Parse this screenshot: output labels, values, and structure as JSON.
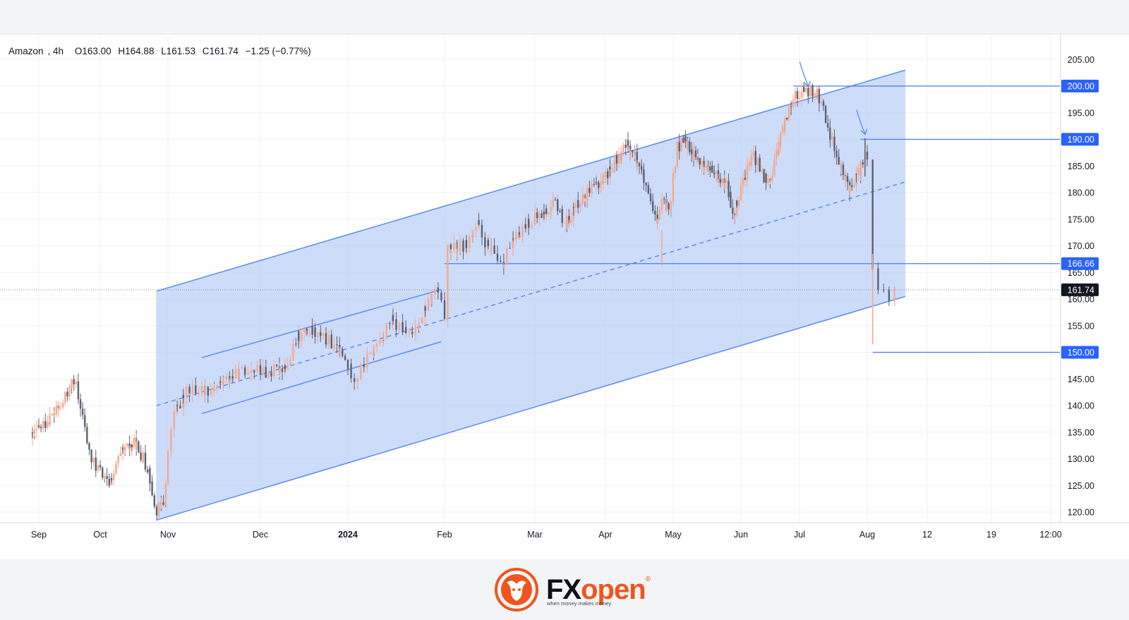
{
  "legend": {
    "symbol": "Amazon",
    "interval": "4h",
    "open": "O163.00",
    "high": "H164.88",
    "low": "L161.53",
    "close": "C161.74",
    "change": "−1.25 (−0.77%)"
  },
  "chart_data": {
    "type": "candlestick",
    "x_labels": [
      "Sep",
      "Oct",
      "Nov",
      "Dec",
      "2024",
      "Feb",
      "Mar",
      "Apr",
      "May",
      "Jun",
      "Jul",
      "Aug",
      "12",
      "19",
      "12:00"
    ],
    "y_ticks": [
      "205.00",
      "200.00",
      "195.00",
      "190.00",
      "185.00",
      "180.00",
      "175.00",
      "170.00",
      "165.00",
      "160.00",
      "155.00",
      "150.00",
      "145.00",
      "140.00",
      "135.00",
      "130.00",
      "125.00",
      "120.00"
    ],
    "ylim": [
      118.5,
      207.5
    ],
    "price_labels": [
      "200.00",
      "190.00",
      "166.66",
      "161.74",
      "150.00"
    ],
    "last_price": 161.74,
    "horizontal_levels": [
      200.0,
      190.0,
      166.66,
      150.0
    ],
    "anchors": [
      [
        "2023-09-01",
        134
      ],
      [
        "2023-09-08",
        137
      ],
      [
        "2023-09-15",
        140
      ],
      [
        "2023-09-21",
        145
      ],
      [
        "2023-09-26",
        135
      ],
      [
        "2023-09-28",
        130
      ],
      [
        "2023-10-02",
        128
      ],
      [
        "2023-10-06",
        125
      ],
      [
        "2023-10-12",
        131
      ],
      [
        "2023-10-18",
        133
      ],
      [
        "2023-10-24",
        128
      ],
      [
        "2023-10-27",
        120
      ],
      [
        "2023-10-31",
        122
      ],
      [
        "2023-11-03",
        138
      ],
      [
        "2023-11-08",
        143
      ],
      [
        "2023-11-15",
        143
      ],
      [
        "2023-11-21",
        145
      ],
      [
        "2023-11-28",
        147
      ],
      [
        "2023-12-05",
        146
      ],
      [
        "2023-12-12",
        148
      ],
      [
        "2023-12-15",
        153
      ],
      [
        "2023-12-20",
        154
      ],
      [
        "2023-12-27",
        152
      ],
      [
        "2024-01-02",
        148
      ],
      [
        "2024-01-05",
        145
      ],
      [
        "2024-01-10",
        150
      ],
      [
        "2024-01-16",
        156
      ],
      [
        "2024-01-22",
        153
      ],
      [
        "2024-01-26",
        158
      ],
      [
        "2024-01-30",
        162
      ],
      [
        "2024-02-01",
        157
      ],
      [
        "2024-02-02",
        169
      ],
      [
        "2024-02-08",
        170
      ],
      [
        "2024-02-12",
        174
      ],
      [
        "2024-02-15",
        170
      ],
      [
        "2024-02-20",
        167
      ],
      [
        "2024-02-27",
        174
      ],
      [
        "2024-03-05",
        176
      ],
      [
        "2024-03-11",
        178
      ],
      [
        "2024-03-15",
        174
      ],
      [
        "2024-03-20",
        178
      ],
      [
        "2024-03-28",
        181
      ],
      [
        "2024-04-05",
        185
      ],
      [
        "2024-04-11",
        189
      ],
      [
        "2024-04-17",
        185
      ],
      [
        "2024-04-24",
        174
      ],
      [
        "2024-04-26",
        178
      ],
      [
        "2024-04-30",
        177
      ],
      [
        "2024-05-03",
        188
      ],
      [
        "2024-05-07",
        190
      ],
      [
        "2024-05-13",
        186
      ],
      [
        "2024-05-20",
        184
      ],
      [
        "2024-05-28",
        181
      ],
      [
        "2024-05-31",
        176
      ],
      [
        "2024-06-05",
        183
      ],
      [
        "2024-06-10",
        187
      ],
      [
        "2024-06-14",
        183
      ],
      [
        "2024-06-17",
        182
      ],
      [
        "2024-06-21",
        188
      ],
      [
        "2024-06-28",
        198
      ],
      [
        "2024-07-05",
        199
      ],
      [
        "2024-07-09",
        199
      ],
      [
        "2024-07-12",
        196
      ],
      [
        "2024-07-17",
        189
      ],
      [
        "2024-07-19",
        186
      ],
      [
        "2024-07-24",
        181
      ],
      [
        "2024-07-29",
        184
      ],
      [
        "2024-07-31",
        187
      ],
      [
        "2024-08-01",
        185
      ],
      [
        "2024-08-02",
        166
      ],
      [
        "2024-08-05",
        160
      ],
      [
        "2024-08-06",
        162
      ]
    ],
    "channel": {
      "upper": [
        [
          "2023-10-27",
          161.5
        ],
        [
          "2024-08-08",
          203.0
        ]
      ],
      "middle": [
        [
          "2023-10-27",
          140.0
        ],
        [
          "2024-08-08",
          182.0
        ]
      ],
      "lower": [
        [
          "2023-10-27",
          118.5
        ],
        [
          "2024-08-08",
          160.5
        ]
      ]
    },
    "inner_channel": {
      "upper": [
        [
          "2023-11-12",
          149.0
        ],
        [
          "2024-01-31",
          161.8
        ]
      ],
      "lower": [
        [
          "2023-11-12",
          138.5
        ],
        [
          "2024-01-31",
          152.0
        ]
      ]
    },
    "colors": {
      "up": "#26a69a",
      "down": "#ef5350",
      "candle_up": "#f5a88e",
      "candle_down": "#5d6070",
      "channel_line": "#5b8dea",
      "channel_fill": "#bcd0f7",
      "level_line": "#4a7ee6",
      "label_bg": "#2962ff",
      "price_bg": "#131722",
      "arrow": "#5b8dea"
    },
    "arrows": [
      {
        "date": "2024-07-05",
        "price": 199.5
      },
      {
        "date": "2024-07-31",
        "price": 190.5
      }
    ]
  },
  "brand": {
    "fx": "FX",
    "open": "open",
    "reg": "®",
    "tagline": "when money makes money"
  }
}
